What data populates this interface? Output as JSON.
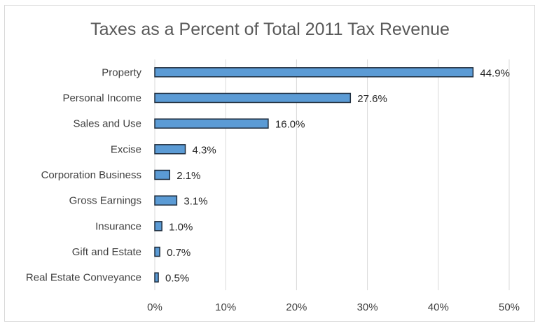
{
  "chart_data": {
    "type": "bar",
    "orientation": "horizontal",
    "title": "Taxes as a Percent of Total 2011 Tax Revenue",
    "categories": [
      "Property",
      "Personal Income",
      "Sales and Use",
      "Excise",
      "Corporation Business",
      "Gross Earnings",
      "Insurance",
      "Gift and Estate",
      "Real Estate Conveyance"
    ],
    "values": [
      44.9,
      27.6,
      16.0,
      4.3,
      2.1,
      3.1,
      1.0,
      0.7,
      0.5
    ],
    "value_labels": [
      "44.9%",
      "27.6%",
      "16.0%",
      "4.3%",
      "2.1%",
      "3.1%",
      "1.0%",
      "0.7%",
      "0.5%"
    ],
    "xlim": [
      0,
      50
    ],
    "xticks": [
      0,
      10,
      20,
      30,
      40,
      50
    ],
    "xtick_labels": [
      "0%",
      "10%",
      "20%",
      "30%",
      "40%",
      "50%"
    ],
    "xlabel": "",
    "ylabel": "",
    "grid": "vertical",
    "bar_color": "#5b9bd5",
    "bar_edge_color": "#1f2d3d"
  }
}
